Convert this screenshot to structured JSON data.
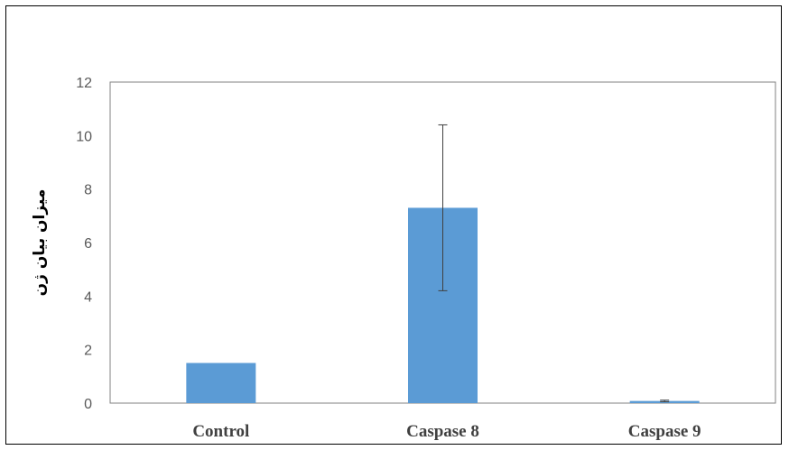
{
  "chart_data": {
    "type": "bar",
    "categories": [
      "Control",
      "Caspase 8",
      "Caspase 9"
    ],
    "values": [
      1.5,
      7.3,
      0.08
    ],
    "errors": [
      0.0,
      3.1,
      0.03
    ],
    "ylabel": "میزان بیان ژن",
    "xlabel": "",
    "ylim": [
      0,
      12
    ],
    "yticks": [
      0,
      2,
      4,
      6,
      8,
      10,
      12
    ],
    "grid": false,
    "bar_color": "#5b9bd5",
    "error_color": "#404040",
    "axis_color": "#808080"
  }
}
